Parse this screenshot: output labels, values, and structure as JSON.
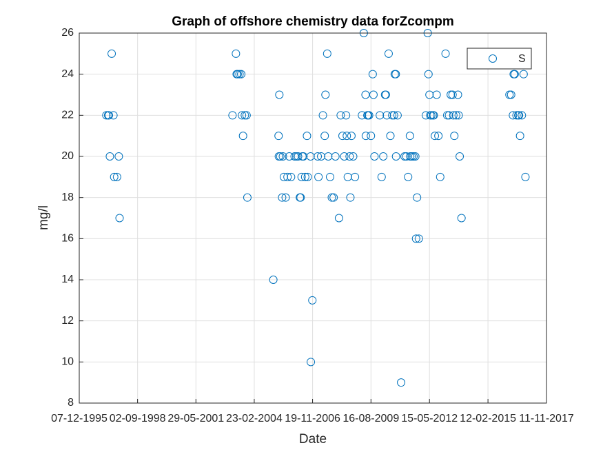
{
  "chart_data": {
    "type": "scatter",
    "title": "Graph of offshore chemistry data forZcompm",
    "x_label": "Date",
    "y_label": "mg/l",
    "xlim": [
      "1995-12-07",
      "2017-11-11"
    ],
    "xticks": [
      {
        "value": "1995-12-07",
        "label": "07-12-1995"
      },
      {
        "value": "1998-09-02",
        "label": "02-09-1998"
      },
      {
        "value": "2001-05-29",
        "label": "29-05-2001"
      },
      {
        "value": "2004-02-23",
        "label": "23-02-2004"
      },
      {
        "value": "2006-11-19",
        "label": "19-11-2006"
      },
      {
        "value": "2009-08-16",
        "label": "16-08-2009"
      },
      {
        "value": "2012-05-15",
        "label": "15-05-2012"
      },
      {
        "value": "2015-02-12",
        "label": "12-02-2015"
      },
      {
        "value": "2017-11-11",
        "label": "11-11-2017"
      }
    ],
    "ylim": [
      8,
      26
    ],
    "yticks": [
      8,
      10,
      12,
      14,
      16,
      18,
      20,
      22,
      24,
      26
    ],
    "grid": true,
    "legend_position": "northeast",
    "series": [
      {
        "name": "S",
        "color": "#0072bd",
        "x": [
          "1997-03-15",
          "1997-04-15",
          "1997-04-28",
          "1997-05-15",
          "1997-06-15",
          "1997-07-15",
          "1997-07-28",
          "1997-09-15",
          "1997-10-15",
          "1997-10-28",
          "2003-02-15",
          "2003-04-15",
          "2003-04-28",
          "2003-05-15",
          "2003-06-15",
          "2003-07-15",
          "2003-07-28",
          "2003-08-15",
          "2003-09-15",
          "2003-10-15",
          "2003-10-28",
          "2005-01-15",
          "2005-04-15",
          "2005-04-20",
          "2005-04-28",
          "2005-05-15",
          "2005-06-15",
          "2005-06-28",
          "2005-07-15",
          "2005-08-15",
          "2005-09-15",
          "2005-10-15",
          "2005-11-15",
          "2006-01-15",
          "2006-02-15",
          "2006-03-15",
          "2006-04-15",
          "2006-04-28",
          "2006-05-15",
          "2006-05-28",
          "2006-06-15",
          "2006-07-15",
          "2006-08-15",
          "2006-08-28",
          "2006-10-15",
          "2006-10-20",
          "2006-11-15",
          "2007-02-15",
          "2007-02-28",
          "2007-04-15",
          "2007-05-15",
          "2007-06-15",
          "2007-06-28",
          "2007-07-28",
          "2007-08-15",
          "2007-09-15",
          "2007-10-15",
          "2007-11-15",
          "2007-12-15",
          "2008-02-15",
          "2008-03-15",
          "2008-04-15",
          "2008-05-15",
          "2008-06-15",
          "2008-06-28",
          "2008-07-15",
          "2008-08-15",
          "2008-08-28",
          "2008-09-15",
          "2008-10-15",
          "2008-11-15",
          "2009-03-15",
          "2009-04-15",
          "2009-05-15",
          "2009-05-20",
          "2009-06-15",
          "2009-06-28",
          "2009-07-15",
          "2009-08-15",
          "2009-09-15",
          "2009-09-28",
          "2009-10-15",
          "2010-01-15",
          "2010-02-15",
          "2010-03-15",
          "2010-04-15",
          "2010-04-28",
          "2010-05-15",
          "2010-06-15",
          "2010-07-15",
          "2010-08-15",
          "2010-09-15",
          "2010-09-28",
          "2010-10-15",
          "2010-10-20",
          "2010-11-15",
          "2011-01-15",
          "2011-03-15",
          "2011-04-15",
          "2011-05-15",
          "2011-06-15",
          "2011-06-20",
          "2011-07-15",
          "2011-08-15",
          "2011-09-15",
          "2011-09-28",
          "2011-10-15",
          "2011-11-15",
          "2012-03-15",
          "2012-04-15",
          "2012-04-28",
          "2012-05-15",
          "2012-05-28",
          "2012-06-15",
          "2012-07-15",
          "2012-07-28",
          "2012-08-15",
          "2012-09-15",
          "2012-10-15",
          "2012-11-15",
          "2013-02-15",
          "2013-03-15",
          "2013-04-15",
          "2013-05-15",
          "2013-06-15",
          "2013-06-28",
          "2013-07-15",
          "2013-08-15",
          "2013-09-15",
          "2013-09-28",
          "2013-10-15",
          "2013-11-15",
          "2016-02-15",
          "2016-03-15",
          "2016-04-15",
          "2016-04-28",
          "2016-05-15",
          "2016-06-15",
          "2016-07-15",
          "2016-07-28",
          "2016-08-15",
          "2016-09-15",
          "2016-10-15",
          "2016-11-15"
        ],
        "values": [
          22,
          22,
          22,
          20,
          25,
          22,
          19,
          19,
          20,
          17,
          22,
          25,
          24,
          24,
          24,
          24,
          22,
          21,
          22,
          22,
          18,
          14,
          21,
          20,
          23,
          20,
          18,
          20,
          19,
          18,
          19,
          20,
          19,
          20,
          20,
          20,
          18,
          18,
          19,
          20,
          20,
          19,
          21,
          19,
          20,
          10,
          13,
          20,
          19,
          20,
          22,
          21,
          23,
          25,
          20,
          19,
          18,
          18,
          20,
          17,
          22,
          21,
          20,
          22,
          21,
          19,
          20,
          18,
          21,
          20,
          19,
          22,
          26,
          23,
          21,
          22,
          22,
          22,
          21,
          24,
          23,
          20,
          22,
          19,
          20,
          23,
          23,
          22,
          25,
          21,
          22,
          22,
          24,
          24,
          20,
          22,
          9,
          20,
          20,
          19,
          21,
          20,
          20,
          20,
          20,
          16,
          18,
          16,
          22,
          26,
          24,
          23,
          22,
          22,
          22,
          22,
          21,
          23,
          21,
          19,
          25,
          22,
          22,
          23,
          23,
          22,
          21,
          22,
          23,
          22,
          20,
          17,
          23,
          23,
          22,
          24,
          24,
          22,
          22,
          22,
          21,
          22,
          24,
          19
        ]
      }
    ]
  }
}
